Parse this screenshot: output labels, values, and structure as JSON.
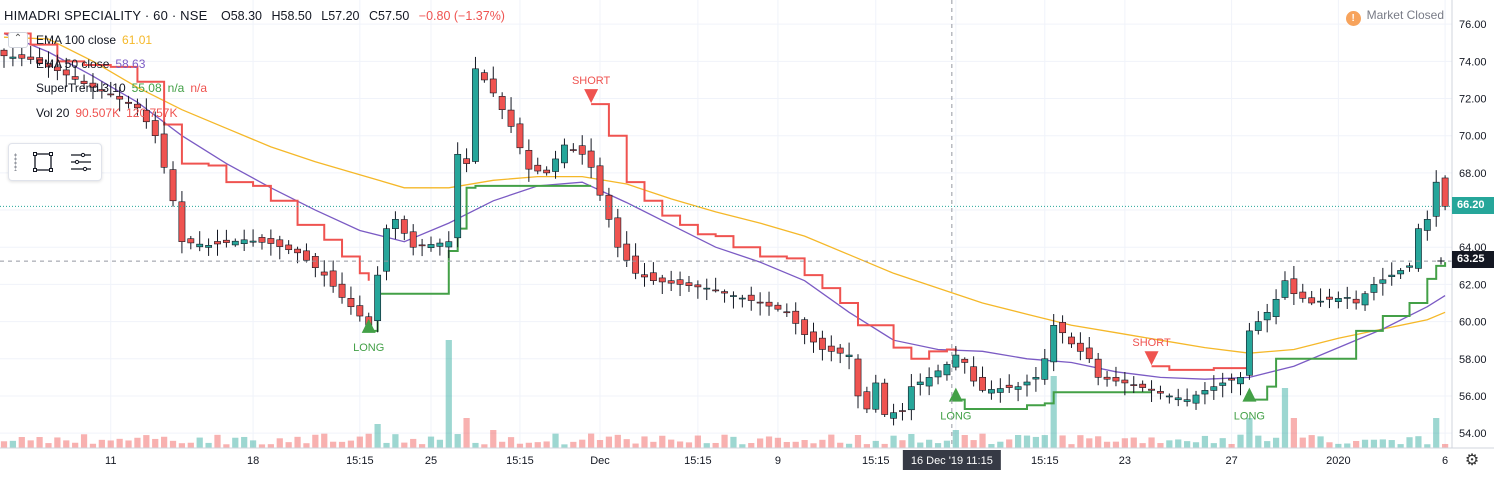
{
  "header": {
    "symbol": "HIMADRI SPECIALITY · 60 · NSE",
    "open": "O58.30",
    "high": "H58.50",
    "low": "L57.20",
    "close": "C57.50",
    "change": "−0.80 (−1.37%)",
    "change_color": "#ef5350",
    "market_status": "Market Closed",
    "market_icon": "!"
  },
  "indicators": [
    {
      "name": "EMA 100 close",
      "value": "61.01",
      "color": "#f5b829"
    },
    {
      "name": "EMA 50 close",
      "value": "58.63",
      "color": "#7b5bc4"
    },
    {
      "name": "SuperTrend 3 10",
      "value": "55.08",
      "extra1": "n/a",
      "extra2": "n/a",
      "color": "#43a047"
    },
    {
      "name": "Vol 20",
      "value": "90.507K",
      "value2": "120.757K",
      "color": "#ef5350"
    }
  ],
  "price_tags": {
    "last": "66.20",
    "crosshair": "63.25",
    "crosshair_time": "16 Dec '19   11:15"
  },
  "signals": [
    {
      "label": "LONG",
      "type": "long"
    },
    {
      "label": "SHORT",
      "type": "short"
    },
    {
      "label": "LONG",
      "type": "long"
    },
    {
      "label": "SHORT",
      "type": "short"
    },
    {
      "label": "LONG",
      "type": "long"
    }
  ],
  "colors": {
    "up": "#26a69a",
    "down": "#ef5350",
    "candle_up_fill": "#26a69a",
    "candle_down_fill": "#ef5350",
    "ema100": "#f5b829",
    "ema50": "#7b5bc4",
    "st_up": "#43a047",
    "st_down": "#ef5350",
    "grid": "#f0f3fa"
  },
  "chart_data": {
    "type": "candlestick",
    "title": "HIMADRI SPECIALITY · 60 · NSE",
    "y_ticks": [
      54,
      56,
      58,
      60,
      62,
      64,
      66,
      68,
      70,
      72,
      74,
      76
    ],
    "y_tick_labels": [
      "54.00",
      "56.00",
      "58.00",
      "60.00",
      "62.00",
      "64.00",
      "66.00",
      "68.00",
      "70.00",
      "72.00",
      "74.00",
      "76.00"
    ],
    "ylim": [
      53.2,
      77.3
    ],
    "x_tick_labels": [
      "11",
      "18",
      "15:15",
      "25",
      "15:15",
      "Dec",
      "15:15",
      "9",
      "15:15",
      "16 Dec '19   11:15",
      "15:15",
      "23",
      "27",
      "2020",
      "6"
    ],
    "x_tick_bars": [
      12,
      28,
      40,
      48,
      58,
      67,
      78,
      87,
      98,
      107,
      117,
      126,
      138,
      150,
      162
    ],
    "close_anchors": [
      [
        0,
        74.3
      ],
      [
        3,
        74.1
      ],
      [
        6,
        73.5
      ],
      [
        9,
        72.8
      ],
      [
        12,
        72.2
      ],
      [
        15,
        71.5
      ],
      [
        17,
        70.0
      ],
      [
        18,
        68.3
      ],
      [
        19,
        66.5
      ],
      [
        20,
        64.3
      ],
      [
        23,
        64.1
      ],
      [
        27,
        64.4
      ],
      [
        30,
        64.2
      ],
      [
        33,
        63.7
      ],
      [
        36,
        62.5
      ],
      [
        38,
        61.3
      ],
      [
        40,
        60.3
      ],
      [
        41,
        59.8
      ],
      [
        42,
        62.5
      ],
      [
        43,
        65.0
      ],
      [
        44,
        65.5
      ],
      [
        46,
        64.0
      ],
      [
        50,
        64.3
      ],
      [
        51,
        69.0
      ],
      [
        52,
        68.5
      ],
      [
        53,
        73.6
      ],
      [
        54,
        73.0
      ],
      [
        55,
        72.3
      ],
      [
        57,
        70.5
      ],
      [
        59,
        68.2
      ],
      [
        61,
        68.0
      ],
      [
        63,
        69.5
      ],
      [
        65,
        69.0
      ],
      [
        66,
        68.3
      ],
      [
        67,
        66.8
      ],
      [
        68,
        65.5
      ],
      [
        69,
        64.0
      ],
      [
        71,
        62.6
      ],
      [
        73,
        62.2
      ],
      [
        76,
        62.0
      ],
      [
        79,
        61.8
      ],
      [
        82,
        61.4
      ],
      [
        85,
        61.0
      ],
      [
        88,
        60.5
      ],
      [
        90,
        59.3
      ],
      [
        92,
        58.5
      ],
      [
        95,
        58.2
      ],
      [
        96,
        56.0
      ],
      [
        97,
        55.3
      ],
      [
        98,
        56.7
      ],
      [
        99,
        55.0
      ],
      [
        101,
        55.2
      ],
      [
        102,
        56.5
      ],
      [
        104,
        57.0
      ],
      [
        106,
        57.7
      ],
      [
        107,
        58.2
      ],
      [
        108,
        57.8
      ],
      [
        109,
        56.8
      ],
      [
        110,
        56.3
      ],
      [
        112,
        56.4
      ],
      [
        114,
        56.5
      ],
      [
        116,
        57.0
      ],
      [
        117,
        58.0
      ],
      [
        118,
        59.8
      ],
      [
        119,
        59.4
      ],
      [
        120,
        58.8
      ],
      [
        122,
        58.0
      ],
      [
        123,
        57.0
      ],
      [
        125,
        56.8
      ],
      [
        127,
        56.6
      ],
      [
        129,
        56.3
      ],
      [
        131,
        56.0
      ],
      [
        133,
        55.8
      ],
      [
        135,
        56.3
      ],
      [
        137,
        56.7
      ],
      [
        139,
        57.0
      ],
      [
        140,
        59.5
      ],
      [
        142,
        60.5
      ],
      [
        143,
        61.2
      ],
      [
        144,
        62.2
      ],
      [
        145,
        61.5
      ],
      [
        147,
        61.0
      ],
      [
        149,
        61.2
      ],
      [
        151,
        61.3
      ],
      [
        152,
        61.0
      ],
      [
        154,
        62.0
      ],
      [
        156,
        62.5
      ],
      [
        158,
        63.0
      ],
      [
        159,
        65.0
      ],
      [
        160,
        65.5
      ],
      [
        161,
        67.5
      ],
      [
        162,
        66.2
      ]
    ],
    "supertrend": [
      [
        0,
        75.5,
        "down"
      ],
      [
        3,
        74.9,
        "down"
      ],
      [
        6,
        74.0,
        "down"
      ],
      [
        9,
        73.8,
        "down"
      ],
      [
        12,
        73.7,
        "down"
      ],
      [
        15,
        72.9,
        "down"
      ],
      [
        18,
        70.6,
        "down"
      ],
      [
        20,
        68.5,
        "down"
      ],
      [
        23,
        68.4,
        "down"
      ],
      [
        25,
        67.5,
        "down"
      ],
      [
        28,
        67.3,
        "down"
      ],
      [
        30,
        66.5,
        "down"
      ],
      [
        33,
        65.2,
        "down"
      ],
      [
        36,
        64.4,
        "down"
      ],
      [
        38,
        63.5,
        "down"
      ],
      [
        40,
        62.6,
        "down"
      ],
      [
        41,
        62.2,
        "down"
      ],
      [
        41,
        59.5,
        "up"
      ],
      [
        42,
        61.5,
        "up"
      ],
      [
        49,
        61.5,
        "up"
      ],
      [
        50,
        63.8,
        "up"
      ],
      [
        51,
        65.0,
        "up"
      ],
      [
        52,
        67.2,
        "up"
      ],
      [
        53,
        67.3,
        "up"
      ],
      [
        66,
        67.3,
        "up"
      ],
      [
        66,
        71.7,
        "down"
      ],
      [
        68,
        70.0,
        "down"
      ],
      [
        70,
        67.5,
        "down"
      ],
      [
        72,
        66.5,
        "down"
      ],
      [
        74,
        65.7,
        "down"
      ],
      [
        76,
        65.2,
        "down"
      ],
      [
        78,
        64.7,
        "down"
      ],
      [
        80,
        64.6,
        "down"
      ],
      [
        82,
        64.0,
        "down"
      ],
      [
        85,
        63.5,
        "down"
      ],
      [
        88,
        63.4,
        "down"
      ],
      [
        90,
        62.5,
        "down"
      ],
      [
        92,
        61.8,
        "down"
      ],
      [
        94,
        61.0,
        "down"
      ],
      [
        96,
        59.8,
        "down"
      ],
      [
        98,
        59.8,
        "down"
      ],
      [
        100,
        58.6,
        "down"
      ],
      [
        102,
        58.0,
        "down"
      ],
      [
        104,
        58.4,
        "down"
      ],
      [
        106,
        58.5,
        "down"
      ],
      [
        107,
        58.4,
        "down"
      ],
      [
        107,
        55.8,
        "up"
      ],
      [
        108,
        55.3,
        "up"
      ],
      [
        114,
        55.3,
        "up"
      ],
      [
        115,
        55.5,
        "up"
      ],
      [
        117,
        55.6,
        "up"
      ],
      [
        118,
        56.2,
        "up"
      ],
      [
        129,
        56.2,
        "up"
      ],
      [
        129,
        57.6,
        "down"
      ],
      [
        131,
        57.4,
        "down"
      ],
      [
        136,
        57.5,
        "down"
      ],
      [
        140,
        57.4,
        "down"
      ],
      [
        140,
        55.8,
        "up"
      ],
      [
        142,
        56.5,
        "up"
      ],
      [
        143,
        58.0,
        "up"
      ],
      [
        151,
        58.0,
        "up"
      ],
      [
        152,
        59.5,
        "up"
      ],
      [
        155,
        60.3,
        "up"
      ],
      [
        158,
        61.0,
        "up"
      ],
      [
        160,
        62.3,
        "up"
      ],
      [
        161,
        63.0,
        "up"
      ],
      [
        162,
        63.2,
        "up"
      ]
    ],
    "ema50": [
      [
        0,
        75.5
      ],
      [
        5,
        74.5
      ],
      [
        10,
        73.2
      ],
      [
        15,
        71.8
      ],
      [
        20,
        70.0
      ],
      [
        25,
        68.5
      ],
      [
        30,
        67.2
      ],
      [
        35,
        66.0
      ],
      [
        40,
        64.9
      ],
      [
        45,
        64.3
      ],
      [
        50,
        65.3
      ],
      [
        55,
        66.5
      ],
      [
        60,
        67.3
      ],
      [
        65,
        67.5
      ],
      [
        70,
        66.4
      ],
      [
        75,
        65.2
      ],
      [
        80,
        64.0
      ],
      [
        85,
        63.2
      ],
      [
        90,
        62.2
      ],
      [
        95,
        60.5
      ],
      [
        100,
        59.0
      ],
      [
        105,
        58.5
      ],
      [
        110,
        58.4
      ],
      [
        115,
        58.0
      ],
      [
        120,
        57.8
      ],
      [
        125,
        57.3
      ],
      [
        130,
        57.0
      ],
      [
        135,
        56.9
      ],
      [
        140,
        57.0
      ],
      [
        145,
        57.6
      ],
      [
        150,
        58.6
      ],
      [
        155,
        59.6
      ],
      [
        160,
        60.8
      ],
      [
        162,
        61.4
      ]
    ],
    "ema100": [
      [
        0,
        75.3
      ],
      [
        5,
        75.2
      ],
      [
        10,
        74.0
      ],
      [
        15,
        72.6
      ],
      [
        20,
        71.4
      ],
      [
        25,
        70.4
      ],
      [
        30,
        69.4
      ],
      [
        35,
        68.6
      ],
      [
        40,
        67.9
      ],
      [
        45,
        67.2
      ],
      [
        50,
        67.2
      ],
      [
        55,
        67.6
      ],
      [
        60,
        67.8
      ],
      [
        65,
        67.8
      ],
      [
        70,
        67.4
      ],
      [
        75,
        66.6
      ],
      [
        80,
        65.9
      ],
      [
        85,
        65.3
      ],
      [
        90,
        64.6
      ],
      [
        95,
        63.6
      ],
      [
        100,
        62.6
      ],
      [
        105,
        61.8
      ],
      [
        110,
        61.0
      ],
      [
        115,
        60.4
      ],
      [
        120,
        59.8
      ],
      [
        125,
        59.4
      ],
      [
        130,
        59.0
      ],
      [
        135,
        58.6
      ],
      [
        140,
        58.3
      ],
      [
        145,
        58.5
      ],
      [
        150,
        59.1
      ],
      [
        155,
        59.6
      ],
      [
        160,
        60.1
      ],
      [
        162,
        60.5
      ]
    ],
    "volume_spikes": [
      [
        42,
        2.0
      ],
      [
        50,
        9.0
      ],
      [
        52,
        2.5
      ],
      [
        55,
        1.5
      ],
      [
        66,
        1.2
      ],
      [
        107,
        1.5
      ],
      [
        118,
        6.0
      ],
      [
        140,
        2.5
      ],
      [
        144,
        5.0
      ],
      [
        145,
        2.5
      ],
      [
        161,
        2.5
      ]
    ]
  }
}
